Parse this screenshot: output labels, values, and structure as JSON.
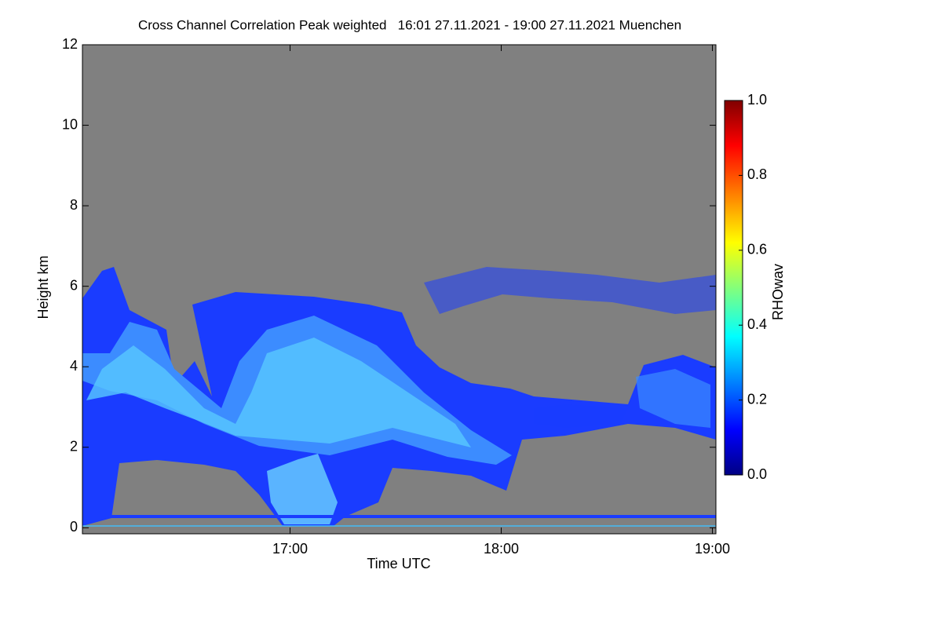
{
  "chart_data": {
    "type": "heatmap",
    "title": "Cross Channel Correlation Peak weighted   16:01 27.11.2021 - 19:00 27.11.2021 Muenchen",
    "x_label": "Time UTC",
    "y_label": "Height km",
    "xlim": [
      961,
      1141
    ],
    "xticks": [
      {
        "value": 1020,
        "label": "17:00"
      },
      {
        "value": 1080,
        "label": "18:00"
      },
      {
        "value": 1140,
        "label": "19:00"
      }
    ],
    "ylim": [
      -0.15,
      12
    ],
    "yticks": [
      0,
      2,
      4,
      6,
      8,
      10,
      12
    ],
    "colorbar": {
      "label": "RHOwav",
      "lim": [
        0,
        1
      ],
      "ticks": [
        {
          "value": 0,
          "label": "0.0"
        },
        {
          "value": 0.2,
          "label": "0.2"
        },
        {
          "value": 0.4,
          "label": "0.4"
        },
        {
          "value": 0.6,
          "label": "0.6"
        },
        {
          "value": 0.8,
          "label": "0.8"
        },
        {
          "value": 1,
          "label": "1.0"
        }
      ]
    }
  }
}
